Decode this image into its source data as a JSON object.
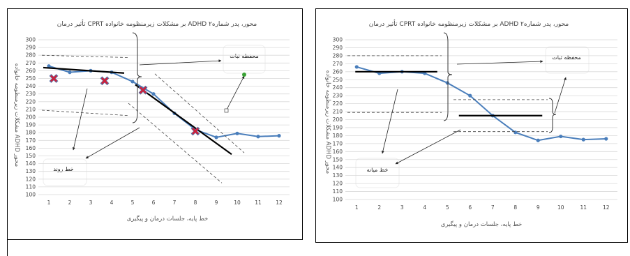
{
  "chart_data": [
    {
      "type": "line",
      "title": "تأثیر درمان CPRT بر مشکلات زیرمنظومه خانواده ADHD محور، پدر شماره۲",
      "xlabel": "خط پایه، جلسات درمان و پیگیری",
      "ylabel": "مشکلات زیرمنظومه خانواده ADHD محور",
      "x": [
        1,
        2,
        3,
        4,
        5,
        6,
        7,
        8,
        9,
        10,
        11,
        12
      ],
      "values": [
        266,
        258,
        260,
        258,
        246,
        230,
        205,
        184,
        174,
        179,
        175,
        176
      ],
      "ylim": [
        100,
        300
      ],
      "ytick_step": 10,
      "line_color": "#4a7ebb",
      "annotations": [
        {
          "text": "محفظه ثبات"
        },
        {
          "text": "خط روند"
        }
      ],
      "trend_line_color": "#000000",
      "cross_marker_color": "#d0203a"
    },
    {
      "type": "line",
      "title": "تأثیر درمان CPRT بر مشکلات زیرمنظومه خانواده ADHD محور، پدر شماره۲",
      "xlabel": "خط پایه، جلسات درمان و پیگیری",
      "ylabel": "مشکلات زیرمنظومه خانواده ADHD محور",
      "x": [
        1,
        2,
        3,
        4,
        5,
        6,
        7,
        8,
        9,
        10,
        11,
        12
      ],
      "values": [
        266,
        258,
        260,
        258,
        246,
        230,
        205,
        184,
        174,
        179,
        175,
        176
      ],
      "ylim": [
        100,
        300
      ],
      "ytick_step": 10,
      "line_color": "#4a7ebb",
      "annotations": [
        {
          "text": "محفظه ثبات"
        },
        {
          "text": "خط میانه"
        }
      ],
      "median_line_color": "#000000"
    }
  ]
}
